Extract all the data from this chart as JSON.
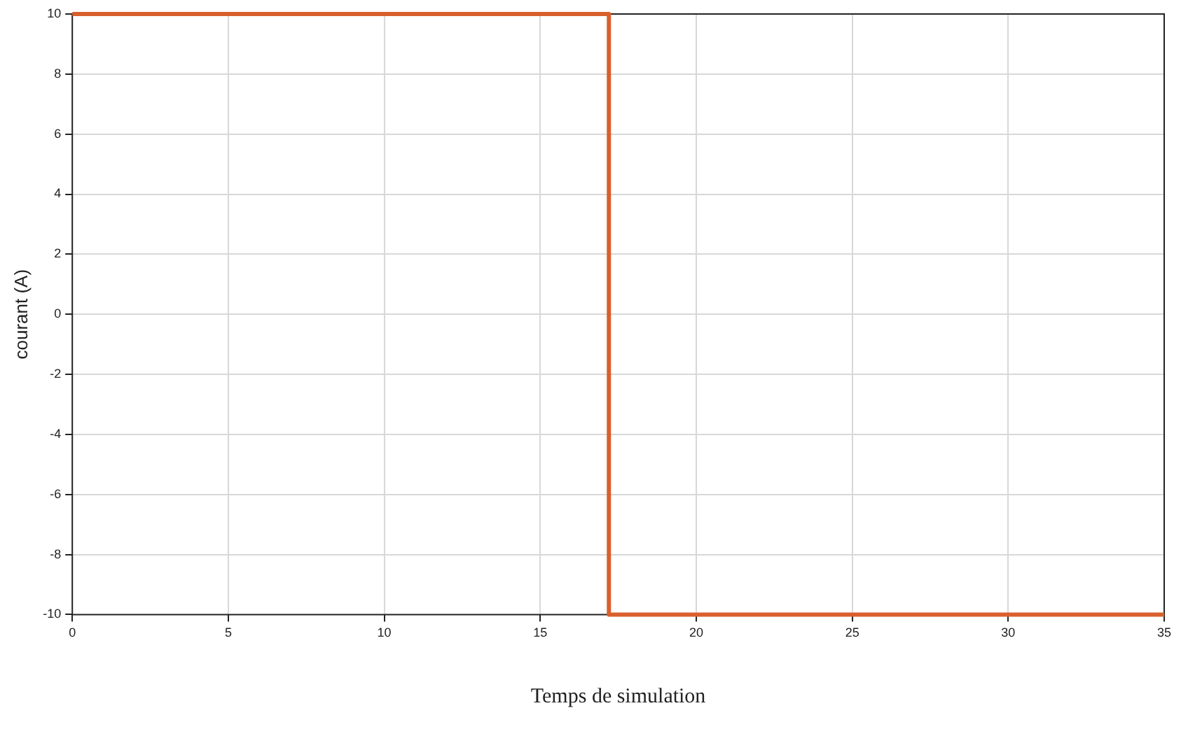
{
  "chart_data": {
    "type": "line",
    "xlabel": "Temps de simulation",
    "ylabel": "courant (A)",
    "x": [
      0,
      17.2,
      17.2,
      35
    ],
    "series": [
      {
        "color": "#d9602c",
        "values": [
          10,
          10,
          -10,
          -10
        ]
      }
    ],
    "xlim": [
      0,
      35
    ],
    "xticks": [
      0,
      5,
      10,
      15,
      20,
      25,
      30,
      35
    ],
    "ylim": [
      -10,
      10
    ],
    "yticks": [
      -10,
      -8,
      -6,
      -4,
      -2,
      0,
      2,
      4,
      6,
      8,
      10
    ],
    "grid": true
  }
}
